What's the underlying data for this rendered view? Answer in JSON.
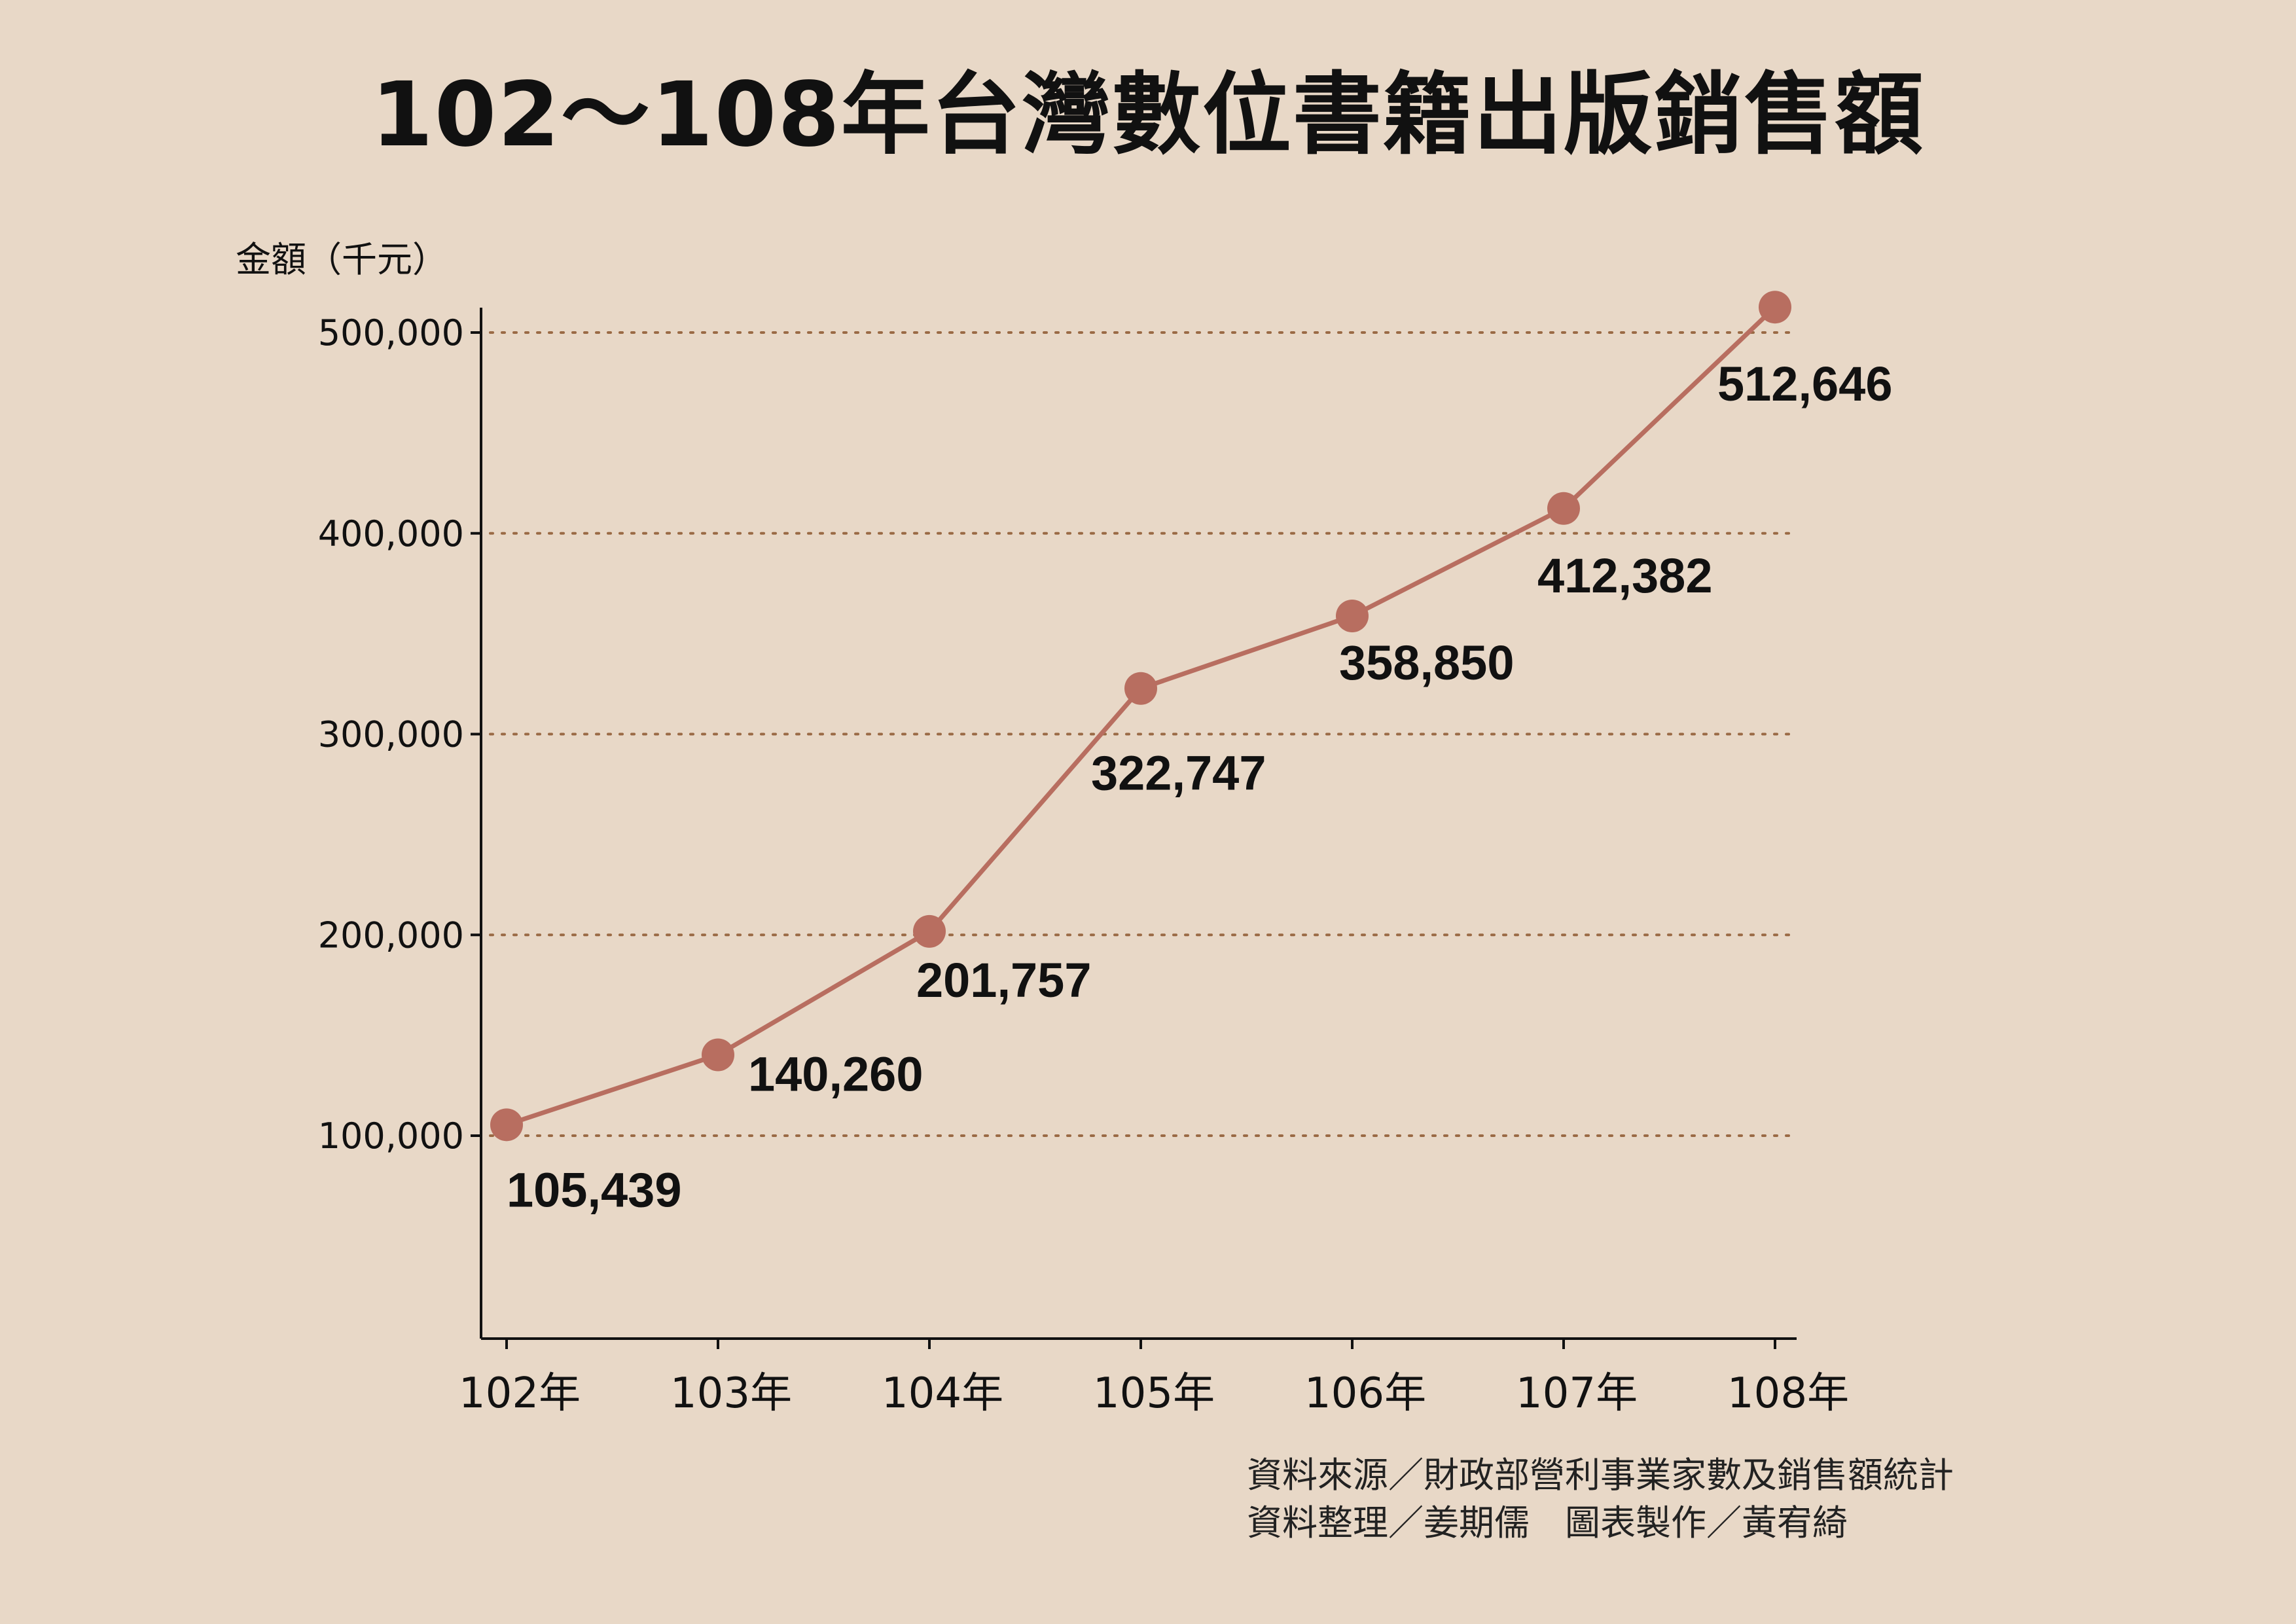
{
  "chart_data": {
    "type": "line",
    "title": "102～108年台灣數位書籍出版銷售額",
    "ylabel": "金額（千元）",
    "xlabel": "",
    "categories": [
      "102年",
      "103年",
      "104年",
      "105年",
      "106年",
      "107年",
      "108年"
    ],
    "series": [
      {
        "values": [
          105439,
          140260,
          201757,
          322747,
          358850,
          412382,
          512646
        ],
        "data_labels": [
          "105,439",
          "140,260",
          "201,757",
          "322,747",
          "358,850",
          "412,382",
          "512,646"
        ]
      }
    ],
    "yticks": [
      100000,
      200000,
      300000,
      400000,
      500000
    ],
    "ytick_labels": [
      "100,000",
      "200,000",
      "300,000",
      "400,000",
      "500,000"
    ],
    "ylim": [
      0,
      500000
    ],
    "grid": "horizontal dotted",
    "legend": "none",
    "colors": {
      "background": "#e8d8c7",
      "line": "#b86e60",
      "marker": "#b86e60",
      "grid": "#9a6a45",
      "axis": "#111111",
      "text": "#111111"
    }
  },
  "source": {
    "line1": "資料來源／財政部營利事業家數及銷售額統計",
    "line2": "資料整理／姜期儒　圖表製作／黃宥綺"
  }
}
